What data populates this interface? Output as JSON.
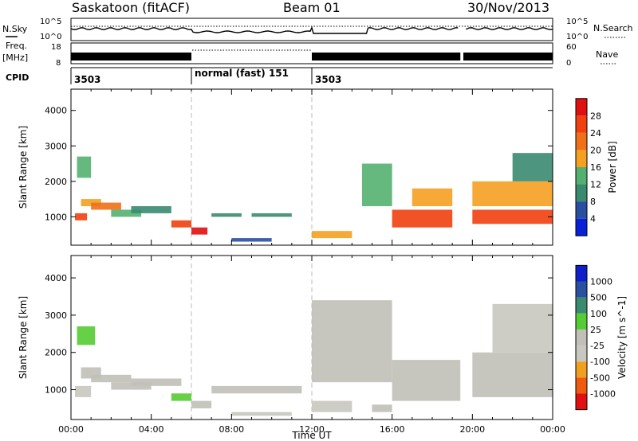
{
  "header": {
    "station": "Saskatoon (fitACF)",
    "beam": "Beam 01",
    "date": "30/Nov/2013"
  },
  "noise_panel": {
    "left_label": "N.Sky",
    "right_label": "N.Search",
    "y_ticks": [
      "10^5",
      "10^0"
    ]
  },
  "freq_panel": {
    "left_label_1": "Freq.",
    "left_label_2": "[MHz]",
    "right_label": "Nave",
    "left_ticks": [
      "18",
      "8"
    ],
    "right_ticks": [
      "60",
      "0"
    ]
  },
  "cpid_panel": {
    "label": "CPID",
    "segments": [
      {
        "start_hour": 0,
        "label": "3503"
      },
      {
        "start_hour": 6,
        "label": "normal (fast) 151"
      },
      {
        "start_hour": 12,
        "label": "3503"
      }
    ]
  },
  "colors": {
    "power": [
      "#0a1fd8",
      "#2a4fa0",
      "#3a8a70",
      "#54b070",
      "#f5a020",
      "#f07018",
      "#f04010",
      "#e01010"
    ],
    "velocity": [
      "#e01010",
      "#f05a10",
      "#f0a020",
      "#c8c8c0",
      "#c0c0b8",
      "#55cc33",
      "#3a8a70",
      "#2a50a0",
      "#1020c8"
    ]
  },
  "chart_data": [
    {
      "type": "heatmap",
      "name": "power",
      "ylabel": "Slant Range [km]",
      "ylim": [
        200,
        4600
      ],
      "y_ticks": [
        1000,
        2000,
        3000,
        4000
      ],
      "xlim": [
        0,
        24
      ],
      "x_ticks": [
        "00:00",
        "04:00",
        "08:00",
        "12:00",
        "16:00",
        "20:00",
        "00:00"
      ],
      "colorbar": {
        "label": "Power [dB]",
        "ticks": [
          "4",
          "8",
          "12",
          "16",
          "20",
          "24",
          "28"
        ],
        "range": [
          0,
          30
        ]
      },
      "cells": [
        [
          0.2,
          0.8,
          900,
          1100,
          24
        ],
        [
          0.5,
          1.5,
          1300,
          1500,
          18
        ],
        [
          0.3,
          1.0,
          2100,
          2700,
          12
        ],
        [
          1.0,
          2.5,
          1200,
          1400,
          22
        ],
        [
          2.0,
          3.5,
          1000,
          1200,
          14
        ],
        [
          3.0,
          5.0,
          1100,
          1300,
          10
        ],
        [
          5.0,
          6.0,
          700,
          900,
          26
        ],
        [
          6.0,
          6.8,
          500,
          700,
          28
        ],
        [
          7.0,
          8.5,
          1000,
          1100,
          8
        ],
        [
          8.0,
          10.0,
          300,
          400,
          6
        ],
        [
          9.0,
          11.0,
          1000,
          1100,
          8
        ],
        [
          12.0,
          14.0,
          400,
          600,
          16
        ],
        [
          14.5,
          16.0,
          1300,
          2500,
          12
        ],
        [
          16.0,
          19.0,
          700,
          1200,
          26
        ],
        [
          17.0,
          19.0,
          1300,
          1800,
          18
        ],
        [
          20.0,
          24.0,
          800,
          1200,
          24
        ],
        [
          20.0,
          24.0,
          1300,
          2000,
          16
        ],
        [
          22.0,
          24.0,
          2000,
          2800,
          10
        ]
      ]
    },
    {
      "type": "heatmap",
      "name": "velocity",
      "ylabel": "Slant Range [km]",
      "ylim": [
        200,
        4600
      ],
      "y_ticks": [
        1000,
        2000,
        3000,
        4000
      ],
      "xlim": [
        0,
        24
      ],
      "x_ticks": [
        "00:00",
        "04:00",
        "08:00",
        "12:00",
        "16:00",
        "20:00",
        "00:00"
      ],
      "xlabel": "Time UT",
      "colorbar": {
        "label": "Velocity [m s^-1]",
        "ticks": [
          "1000",
          "500",
          "100",
          "25",
          "-25",
          "-100",
          "-500",
          "-1000"
        ],
        "range": [
          -1200,
          1200
        ]
      },
      "cells": [
        [
          0.2,
          1.0,
          800,
          1100,
          -300
        ],
        [
          0.5,
          1.5,
          1300,
          1600,
          0
        ],
        [
          0.3,
          1.2,
          2200,
          2700,
          200
        ],
        [
          1.0,
          3.0,
          1200,
          1400,
          0
        ],
        [
          2.0,
          4.0,
          1000,
          1200,
          -50
        ],
        [
          3.0,
          5.5,
          1100,
          1300,
          0
        ],
        [
          5.0,
          6.0,
          700,
          900,
          150
        ],
        [
          6.0,
          7.0,
          500,
          700,
          0
        ],
        [
          7.0,
          9.0,
          900,
          1100,
          0
        ],
        [
          8.0,
          11.0,
          300,
          400,
          -200
        ],
        [
          9.0,
          11.5,
          900,
          1100,
          0
        ],
        [
          12.0,
          14.0,
          400,
          700,
          -300
        ],
        [
          12.0,
          16.0,
          1200,
          3400,
          0
        ],
        [
          15.0,
          16.0,
          400,
          600,
          80
        ],
        [
          16.0,
          19.5,
          700,
          1800,
          0
        ],
        [
          20.0,
          24.0,
          800,
          1300,
          0
        ],
        [
          20.0,
          24.0,
          1300,
          2000,
          -40
        ],
        [
          21.0,
          24.0,
          2000,
          3300,
          -400
        ]
      ]
    }
  ]
}
